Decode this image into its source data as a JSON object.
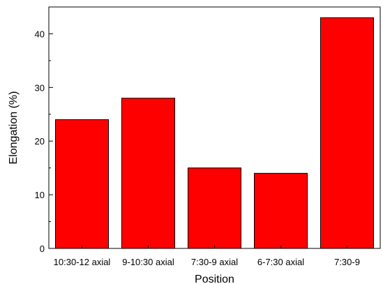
{
  "chart_data": {
    "type": "bar",
    "title": "",
    "xlabel": "Position",
    "ylabel": "Elongation (%)",
    "categories": [
      "10:30-12 axial",
      "9-10:30 axial",
      "7:30-9 axial",
      "6-7:30 axial",
      "7:30-9"
    ],
    "values": [
      24,
      28,
      15,
      14,
      43
    ],
    "ylim": [
      0,
      45
    ],
    "yticks": [
      0,
      10,
      20,
      30,
      40
    ],
    "grid": false,
    "legend": "none",
    "bar_color": "#ff0000",
    "bar_edge_color": "#000000"
  }
}
